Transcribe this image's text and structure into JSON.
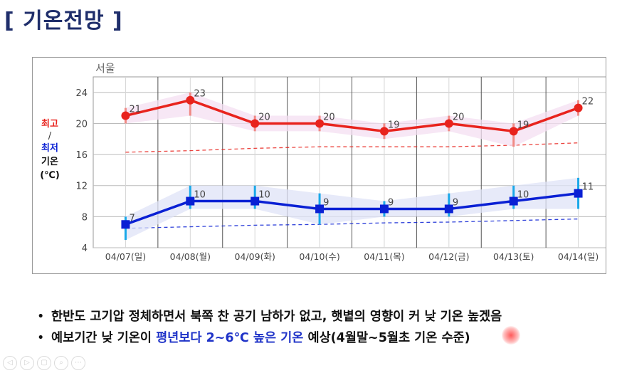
{
  "title": "[ 기온전망 ]",
  "chart_data": {
    "type": "line",
    "location_label": "서울",
    "ylabel_parts": {
      "high": "최고",
      "slash": "/",
      "low": "최저",
      "temp": "기온",
      "unit": "(℃)"
    },
    "categories": [
      "04/07(일)",
      "04/08(월)",
      "04/09(화)",
      "04/10(수)",
      "04/11(목)",
      "04/12(금)",
      "04/13(토)",
      "04/14(일)"
    ],
    "ylim": [
      4,
      26
    ],
    "yticks": [
      4,
      8,
      12,
      16,
      20,
      24
    ],
    "grid": true,
    "series": [
      {
        "name": "최고",
        "color": "#e8231d",
        "marker": "circle",
        "values": [
          21,
          23,
          20,
          20,
          19,
          20,
          19,
          22
        ],
        "range_low": [
          20,
          21,
          19,
          19,
          18,
          19,
          17,
          21
        ],
        "range_high": [
          22,
          24,
          21,
          21,
          20,
          21,
          20,
          23
        ]
      },
      {
        "name": "최저",
        "color": "#0a20d4",
        "marker": "square",
        "values": [
          7,
          10,
          10,
          9,
          9,
          9,
          10,
          11
        ],
        "range_low": [
          5,
          9,
          9,
          7,
          8,
          8,
          9,
          9
        ],
        "range_high": [
          8,
          12,
          12,
          11,
          10,
          11,
          12,
          13
        ]
      }
    ],
    "normal_high": [
      16.3,
      16.5,
      16.8,
      17.0,
      17.0,
      17.0,
      17.2,
      17.5
    ],
    "normal_low": [
      6.5,
      6.7,
      6.9,
      7.0,
      7.2,
      7.3,
      7.5,
      7.7
    ],
    "normal_high_color": "#e8231d",
    "normal_low_color": "#0a20d4"
  },
  "bullets": [
    {
      "text": "한반도 고기압 정체하면서 북쪽 찬 공기 남하가 없고, 햇볕의 영향이 커 낮 기온 높겠음"
    },
    {
      "pre": "예보기간 낮 기온이 ",
      "highlight": "평년보다 2~6℃ 높은 기온",
      "post": " 예상(4월말~5월초 기온 수준)"
    }
  ],
  "viewer_controls": [
    "◁",
    "▷",
    "▢",
    "⌕",
    "⋯"
  ]
}
